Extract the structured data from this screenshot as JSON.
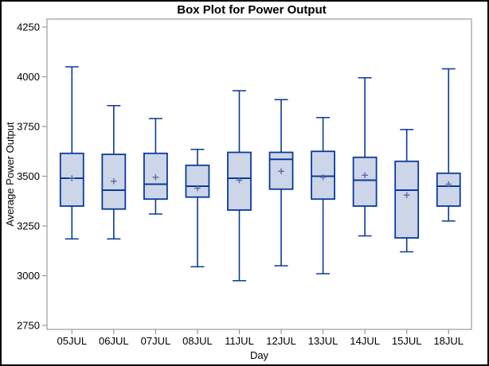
{
  "chart_data": {
    "type": "boxplot",
    "title": "Box Plot for Power Output",
    "xlabel": "Day",
    "ylabel": "Average Power Output",
    "ylim": [
      2750,
      4250
    ],
    "yticks": [
      2750,
      3000,
      3250,
      3500,
      3750,
      4000,
      4250
    ],
    "categories": [
      "05JUL",
      "06JUL",
      "07JUL",
      "08JUL",
      "11JUL",
      "12JUL",
      "13JUL",
      "14JUL",
      "15JUL",
      "18JUL"
    ],
    "series": [
      {
        "name": "05JUL",
        "min": 3185,
        "q1": 3350,
        "median": 3490,
        "mean": 3490,
        "q3": 3615,
        "max": 4050
      },
      {
        "name": "06JUL",
        "min": 3185,
        "q1": 3335,
        "median": 3430,
        "mean": 3475,
        "q3": 3610,
        "max": 3855
      },
      {
        "name": "07JUL",
        "min": 3310,
        "q1": 3385,
        "median": 3460,
        "mean": 3495,
        "q3": 3615,
        "max": 3790
      },
      {
        "name": "08JUL",
        "min": 3045,
        "q1": 3395,
        "median": 3450,
        "mean": 3440,
        "q3": 3555,
        "max": 3635
      },
      {
        "name": "11JUL",
        "min": 2975,
        "q1": 3330,
        "median": 3490,
        "mean": 3480,
        "q3": 3620,
        "max": 3930
      },
      {
        "name": "12JUL",
        "min": 3050,
        "q1": 3435,
        "median": 3585,
        "mean": 3525,
        "q3": 3620,
        "max": 3885
      },
      {
        "name": "13JUL",
        "min": 3010,
        "q1": 3385,
        "median": 3500,
        "mean": 3495,
        "q3": 3625,
        "max": 3795
      },
      {
        "name": "14JUL",
        "min": 3200,
        "q1": 3350,
        "median": 3480,
        "mean": 3505,
        "q3": 3595,
        "max": 3995
      },
      {
        "name": "15JUL",
        "min": 3120,
        "q1": 3190,
        "median": 3430,
        "mean": 3405,
        "q3": 3575,
        "max": 3735
      },
      {
        "name": "18JUL",
        "min": 3275,
        "q1": 3350,
        "median": 3450,
        "mean": 3460,
        "q3": 3515,
        "max": 4040
      }
    ],
    "grid": false,
    "legend_position": "none",
    "colors": {
      "box_fill": "#ccd6e8",
      "box_stroke": "#0a3a9b",
      "whisker": "#0a3a9b",
      "mean_marker": "#5f6fa5",
      "frame": "#9b9b9b",
      "text": "#000000",
      "background": "#ffffff",
      "outer_border": "#000000"
    }
  }
}
